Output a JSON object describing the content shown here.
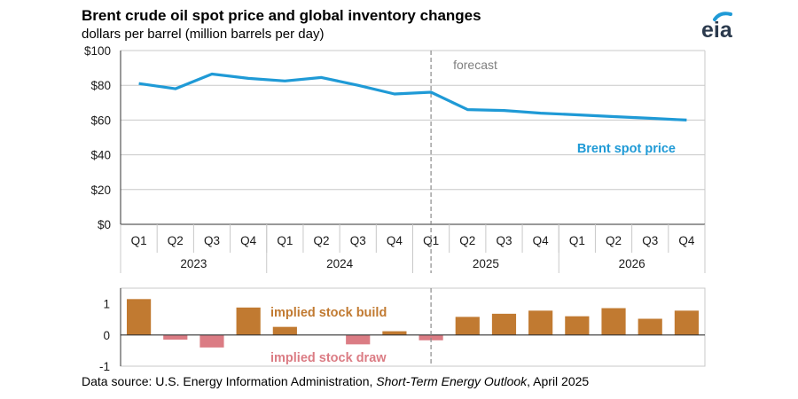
{
  "title": "Brent crude oil spot price and global inventory changes",
  "subtitle": "dollars per barrel (million barrels per day)",
  "logo_text": "eia",
  "source": {
    "prefix": "Data source: U.S. Energy Information Administration, ",
    "publication": "Short-Term Energy Outlook",
    "suffix": ", April 2025"
  },
  "colors": {
    "line": "#1f9ad6",
    "bar_positive": "#c17a31",
    "bar_negative": "#db7c84",
    "grid": "#c8c8c8",
    "forecast_text": "#7f7f7f",
    "logo_accent": "#1f9ad6"
  },
  "chart_data": [
    {
      "type": "line",
      "title": "Brent crude oil spot price",
      "ylabel": "dollars per barrel",
      "ylim": [
        0,
        100
      ],
      "yticks": [
        "$0",
        "$20",
        "$40",
        "$60",
        "$80",
        "$100"
      ],
      "categories": [
        "Q1",
        "Q2",
        "Q3",
        "Q4",
        "Q1",
        "Q2",
        "Q3",
        "Q4",
        "Q1",
        "Q2",
        "Q3",
        "Q4",
        "Q1",
        "Q2",
        "Q3",
        "Q4"
      ],
      "years": [
        "2023",
        "2024",
        "2025",
        "2026"
      ],
      "series": [
        {
          "name": "Brent spot price",
          "values": [
            81,
            78,
            86.5,
            84,
            82.5,
            84.5,
            80,
            75,
            76,
            66,
            65.5,
            64,
            63,
            62,
            61,
            60
          ]
        }
      ],
      "forecast_label": "forecast",
      "forecast_start_index": 9,
      "grid": true
    },
    {
      "type": "bar",
      "title": "Global inventory changes",
      "ylabel": "million barrels per day",
      "ylim": [
        -1,
        1.5
      ],
      "yticks": [
        "-1",
        "0",
        "1"
      ],
      "categories": [
        "Q1",
        "Q2",
        "Q3",
        "Q4",
        "Q1",
        "Q2",
        "Q3",
        "Q4",
        "Q1",
        "Q2",
        "Q3",
        "Q4",
        "Q1",
        "Q2",
        "Q3",
        "Q4"
      ],
      "values": [
        1.15,
        -0.15,
        -0.4,
        0.88,
        0.26,
        0,
        -0.3,
        0.12,
        -0.17,
        0.58,
        0.68,
        0.78,
        0.6,
        0.86,
        0.52,
        0.78
      ],
      "annotations": {
        "build": "implied stock  build",
        "draw": "implied stock draw"
      }
    }
  ]
}
